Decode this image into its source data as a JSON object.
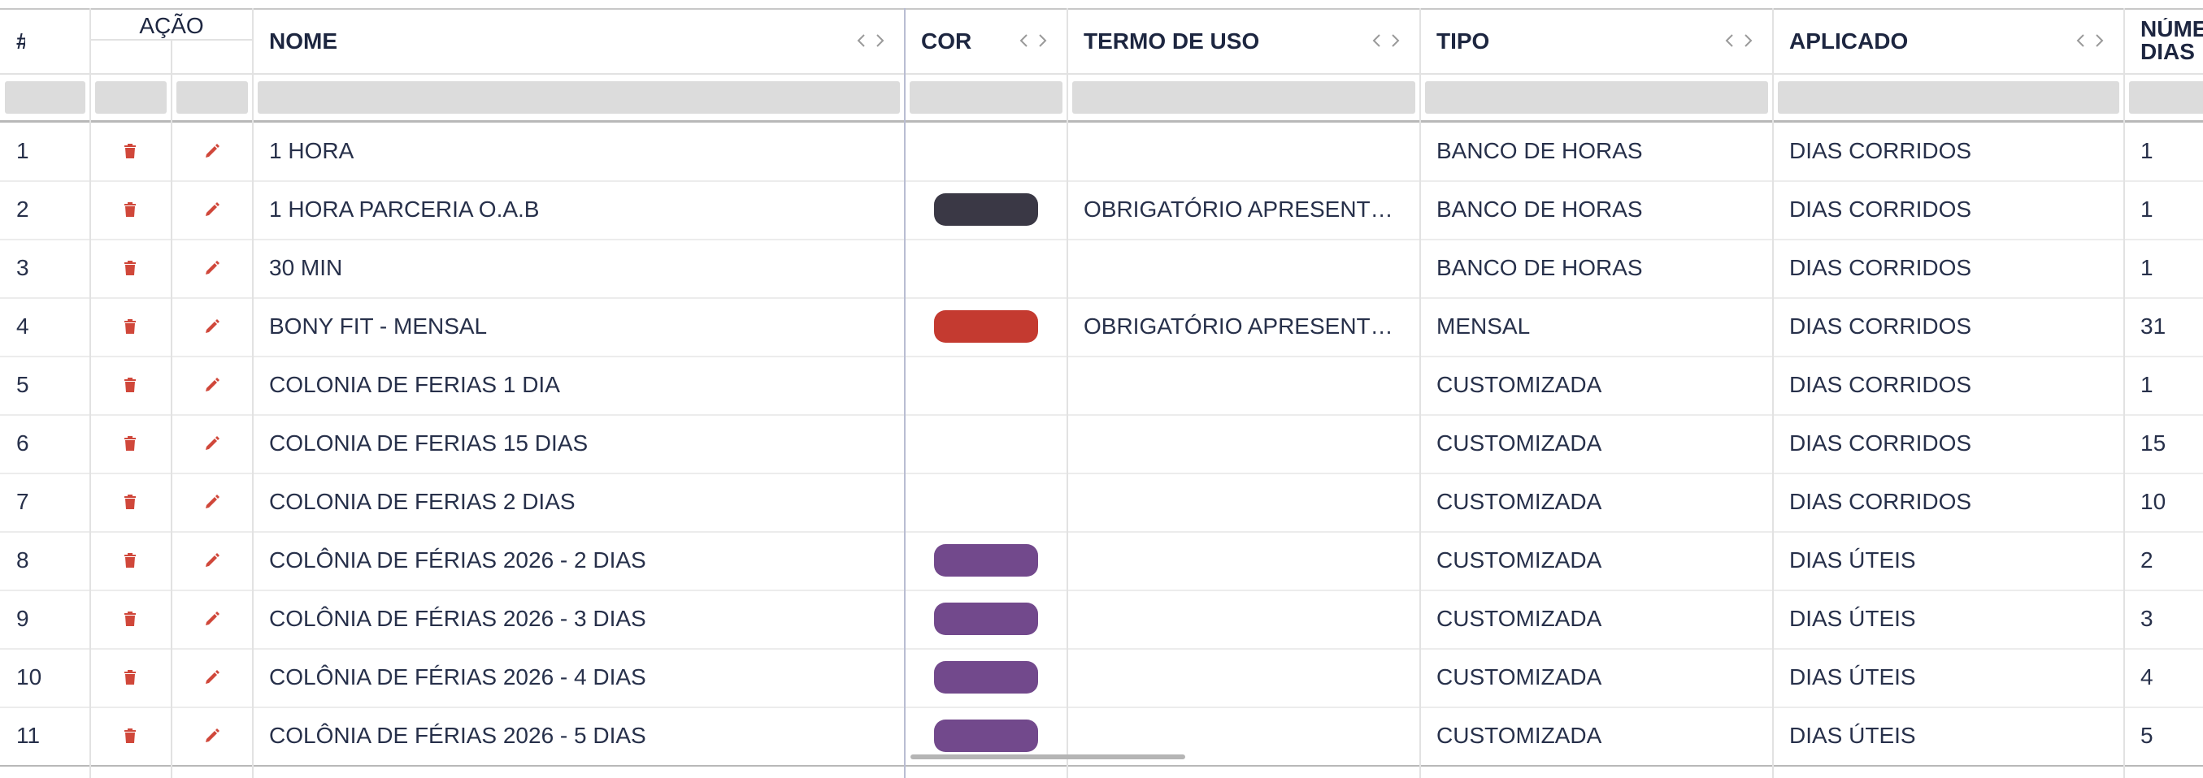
{
  "columns": [
    "#",
    "AÇÃO",
    "NOME",
    "COR",
    "TERMO DE USO",
    "TIPO",
    "APLICADO",
    "NÚMERO DIAS"
  ],
  "rows": [
    {
      "id": 1,
      "nome": "1 HORA",
      "tipo": "BANCO DE HORAS",
      "aplicado": "DIAS CORRIDOS",
      "dias": 1
    },
    {
      "id": 2,
      "nome": "1 HORA PARCERIA O.A.B",
      "cor": "#3a3845",
      "termo": "OBRIGATÓRIO APRESENT…",
      "tipo": "BANCO DE HORAS",
      "aplicado": "DIAS CORRIDOS",
      "dias": 1
    },
    {
      "id": 3,
      "nome": "30 MIN",
      "tipo": "BANCO DE HORAS",
      "aplicado": "DIAS CORRIDOS",
      "dias": 1
    },
    {
      "id": 4,
      "nome": "BONY FIT - MENSAL",
      "cor": "#c43a30",
      "termo": "OBRIGATÓRIO APRESENT…",
      "tipo": "MENSAL",
      "aplicado": "DIAS CORRIDOS",
      "dias": 31
    },
    {
      "id": 5,
      "nome": "COLONIA DE FERIAS 1 DIA",
      "tipo": "CUSTOMIZADA",
      "aplicado": "DIAS CORRIDOS",
      "dias": 1
    },
    {
      "id": 6,
      "nome": "COLONIA DE FERIAS 15 DIAS",
      "tipo": "CUSTOMIZADA",
      "aplicado": "DIAS CORRIDOS",
      "dias": 15
    },
    {
      "id": 7,
      "nome": "COLONIA DE FERIAS 2 DIAS",
      "tipo": "CUSTOMIZADA",
      "aplicado": "DIAS CORRIDOS",
      "dias": 10
    },
    {
      "id": 8,
      "nome": "COLÔNIA DE FÉRIAS 2026 - 2 DIAS",
      "cor": "#72498c",
      "tipo": "CUSTOMIZADA",
      "aplicado": "DIAS ÚTEIS",
      "dias": 2
    },
    {
      "id": 9,
      "nome": "COLÔNIA DE FÉRIAS 2026 - 3 DIAS",
      "cor": "#72498c",
      "tipo": "CUSTOMIZADA",
      "aplicado": "DIAS ÚTEIS",
      "dias": 3
    },
    {
      "id": 10,
      "nome": "COLÔNIA DE FÉRIAS 2026 - 4 DIAS",
      "cor": "#72498c",
      "tipo": "CUSTOMIZADA",
      "aplicado": "DIAS ÚTEIS",
      "dias": 4
    },
    {
      "id": 11,
      "nome": "COLÔNIA DE FÉRIAS 2026 - 5 DIAS",
      "cor": "#72498c",
      "tipo": "CUSTOMIZADA",
      "aplicado": "DIAS ÚTEIS",
      "dias": 5
    }
  ]
}
